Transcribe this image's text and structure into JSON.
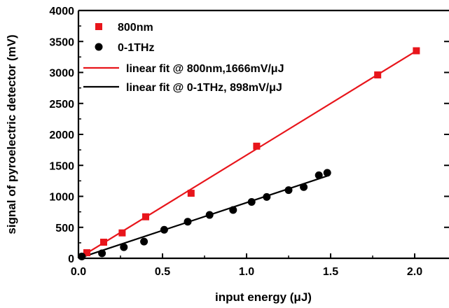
{
  "chart_data": {
    "type": "scatter",
    "xlabel": "input energy (μJ)",
    "ylabel": "signal of pyroelectric detector (mV)",
    "xlim": [
      0,
      2.2
    ],
    "ylim": [
      0,
      4000
    ],
    "xticks": [
      0.0,
      0.5,
      1.0,
      1.5,
      2.0
    ],
    "xtick_labels": [
      "0.0",
      "0.5",
      "1.0",
      "1.5",
      "2.0"
    ],
    "yticks": [
      0,
      500,
      1000,
      1500,
      2000,
      2500,
      3000,
      3500,
      4000
    ],
    "ytick_labels": [
      "0",
      "500",
      "1000",
      "1500",
      "2000",
      "2500",
      "3000",
      "3500",
      "4000"
    ],
    "grid": false,
    "legend_position": "top-left",
    "series": [
      {
        "name": "800nm",
        "marker": "square",
        "color": "#e8151b",
        "x": [
          0.05,
          0.15,
          0.26,
          0.4,
          0.67,
          1.06,
          1.78,
          2.01
        ],
        "y": [
          90,
          260,
          410,
          670,
          1050,
          1810,
          2960,
          3350
        ]
      },
      {
        "name": "0-1THz",
        "marker": "circle",
        "color": "#000000",
        "x": [
          0.02,
          0.14,
          0.27,
          0.39,
          0.51,
          0.65,
          0.78,
          0.92,
          1.03,
          1.12,
          1.25,
          1.34,
          1.43,
          1.48
        ],
        "y": [
          30,
          80,
          180,
          270,
          460,
          590,
          700,
          780,
          910,
          990,
          1100,
          1150,
          1340,
          1380
        ]
      }
    ],
    "fits": [
      {
        "name": "linear fit @ 800nm,1666mV/μJ",
        "color": "#e8151b",
        "x": [
          0,
          2.01
        ],
        "slope": 1666,
        "intercept": 0
      },
      {
        "name": "linear fit @ 0-1THz, 898mV/μJ",
        "color": "#000000",
        "x": [
          0,
          1.48
        ],
        "slope": 898,
        "intercept": 0
      }
    ]
  }
}
